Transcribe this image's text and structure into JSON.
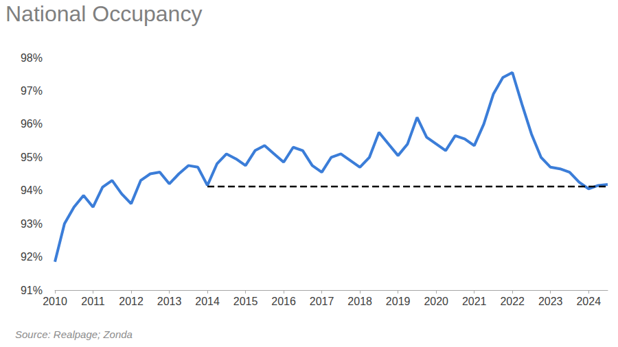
{
  "chart_data": {
    "type": "line",
    "title": "National Occupancy",
    "source": "Source: Realpage; Zonda",
    "x": [
      2010.0,
      2010.25,
      2010.5,
      2010.75,
      2011.0,
      2011.25,
      2011.5,
      2011.75,
      2012.0,
      2012.25,
      2012.5,
      2012.75,
      2013.0,
      2013.25,
      2013.5,
      2013.75,
      2014.0,
      2014.25,
      2014.5,
      2014.75,
      2015.0,
      2015.25,
      2015.5,
      2015.75,
      2016.0,
      2016.25,
      2016.5,
      2016.75,
      2017.0,
      2017.25,
      2017.5,
      2017.75,
      2018.0,
      2018.25,
      2018.5,
      2018.75,
      2019.0,
      2019.25,
      2019.5,
      2019.75,
      2020.0,
      2020.25,
      2020.5,
      2020.75,
      2021.0,
      2021.25,
      2021.5,
      2021.75,
      2022.0,
      2022.25,
      2022.5,
      2022.75,
      2023.0,
      2023.25,
      2023.5,
      2023.75,
      2024.0,
      2024.25,
      2024.5
    ],
    "series": [
      {
        "color": "#3b7dd8",
        "line_style": "solid",
        "values": [
          91.85,
          93.0,
          93.5,
          93.85,
          93.5,
          94.1,
          94.3,
          93.9,
          93.6,
          94.3,
          94.5,
          94.55,
          94.2,
          94.5,
          94.75,
          94.7,
          94.15,
          94.8,
          95.1,
          94.95,
          94.75,
          95.2,
          95.35,
          95.1,
          94.85,
          95.3,
          95.2,
          94.75,
          94.55,
          95.0,
          95.1,
          94.9,
          94.7,
          95.0,
          95.75,
          95.4,
          95.05,
          95.4,
          96.2,
          95.6,
          95.4,
          95.2,
          95.65,
          95.55,
          95.35,
          96.0,
          96.9,
          97.4,
          97.55,
          96.6,
          95.7,
          95.0,
          94.7,
          94.65,
          94.55,
          94.25,
          94.05,
          94.15,
          94.18
        ]
      },
      {
        "color": "#000000",
        "line_style": "dashed",
        "x": [
          2014.0,
          2024.5
        ],
        "values": [
          94.12,
          94.12
        ]
      }
    ],
    "xlim": [
      2010,
      2024.5
    ],
    "xticks": [
      2010,
      2011,
      2012,
      2013,
      2014,
      2015,
      2016,
      2017,
      2018,
      2019,
      2020,
      2021,
      2022,
      2023,
      2024
    ],
    "ylim": [
      91,
      98
    ],
    "yticks": [
      {
        "value": 91,
        "label": "91%"
      },
      {
        "value": 92,
        "label": "92%"
      },
      {
        "value": 93,
        "label": "93%"
      },
      {
        "value": 94,
        "label": "94%"
      },
      {
        "value": 95,
        "label": "95%"
      },
      {
        "value": 96,
        "label": "96%"
      },
      {
        "value": 97,
        "label": "97%"
      },
      {
        "value": 98,
        "label": "98%"
      }
    ],
    "grid": false
  }
}
